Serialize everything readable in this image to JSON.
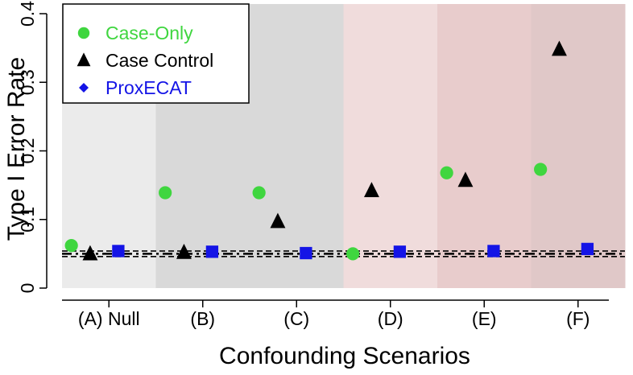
{
  "chart_data": {
    "type": "scatter",
    "title": "",
    "xlabel": "Confounding Scenarios",
    "ylabel": "Type I Error Rate",
    "ylim": [
      0,
      0.4
    ],
    "yticks": [
      "0",
      "0.1",
      "0.2",
      "0.3",
      "0.4"
    ],
    "categories": [
      "(A) Null",
      "(B)",
      "(C)",
      "(D)",
      "(E)",
      "(F)"
    ],
    "series": [
      {
        "name": "Case-Only",
        "marker": "circle",
        "color": "#3fd63f",
        "values": [
          0.062,
          0.139,
          0.139,
          0.05,
          0.168,
          0.173
        ]
      },
      {
        "name": "Case Control",
        "marker": "triangle",
        "color": "#000000",
        "values": [
          0.05,
          0.052,
          0.097,
          0.142,
          0.157,
          0.348
        ]
      },
      {
        "name": "ProxECAT",
        "marker": "square",
        "legend_marker": "diamond",
        "color": "#1414e6",
        "values": [
          0.054,
          0.053,
          0.051,
          0.053,
          0.054,
          0.057
        ]
      }
    ],
    "reference_lines": [
      0.046,
      0.05,
      0.054
    ],
    "background_bands": [
      "#ebebeb",
      "#d9d9d9",
      "#d9d9d9",
      "#f0dcdc",
      "#e8cccc",
      "#e0c8c8"
    ],
    "legend": "top-left",
    "grid": false
  }
}
